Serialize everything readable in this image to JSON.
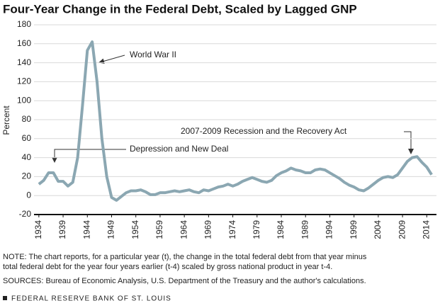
{
  "chart_data": {
    "type": "line",
    "title": "Four-Year Change in the Federal Debt, Scaled by Lagged GNP",
    "y_label": "Percent",
    "x": [
      1934,
      1935,
      1936,
      1937,
      1938,
      1939,
      1940,
      1941,
      1942,
      1943,
      1944,
      1945,
      1946,
      1947,
      1948,
      1949,
      1950,
      1951,
      1952,
      1953,
      1954,
      1955,
      1956,
      1957,
      1958,
      1959,
      1960,
      1961,
      1962,
      1963,
      1964,
      1965,
      1966,
      1967,
      1968,
      1969,
      1970,
      1971,
      1972,
      1973,
      1974,
      1975,
      1976,
      1977,
      1978,
      1979,
      1980,
      1981,
      1982,
      1983,
      1984,
      1985,
      1986,
      1987,
      1988,
      1989,
      1990,
      1991,
      1992,
      1993,
      1994,
      1995,
      1996,
      1997,
      1998,
      1999,
      2000,
      2001,
      2002,
      2003,
      2004,
      2005,
      2006,
      2007,
      2008,
      2009,
      2010,
      2011,
      2012,
      2013,
      2014,
      2015
    ],
    "series": [
      {
        "color": "#8ba7b2",
        "values": [
          12,
          16,
          24,
          24,
          15,
          15,
          10,
          14,
          40,
          95,
          153,
          162,
          120,
          60,
          20,
          -2,
          -5,
          -1,
          3,
          5,
          5,
          6,
          4,
          1,
          1,
          3,
          3,
          4,
          5,
          4,
          5,
          6,
          4,
          3,
          6,
          5,
          7,
          9,
          10,
          12,
          10,
          12,
          15,
          17,
          19,
          17,
          15,
          14,
          16,
          21,
          24,
          26,
          29,
          27,
          26,
          24,
          24,
          27,
          28,
          27,
          24,
          21,
          18,
          14,
          11,
          9,
          6,
          5,
          8,
          12,
          16,
          19,
          20,
          19,
          22,
          29,
          36,
          40,
          41,
          35,
          30,
          22
        ]
      }
    ],
    "xlim": [
      1933,
      2016
    ],
    "xticks": [
      1934,
      1939,
      1944,
      1949,
      1954,
      1959,
      1964,
      1969,
      1974,
      1979,
      1984,
      1989,
      1994,
      1999,
      2004,
      2009,
      2014
    ],
    "ylim": [
      -20,
      180
    ],
    "yticks": [
      -20,
      0,
      20,
      40,
      60,
      80,
      100,
      120,
      140,
      160,
      180
    ],
    "grid": true,
    "annotations": [
      "World War II",
      "Depression and New Deal",
      "2007-2009 Recession and the Recovery Act"
    ],
    "note": [
      "NOTE: The chart reports, for a particular year (t), the change in the total federal debt from that year minus",
      "total federal debt for the year four years earlier (t-4) scaled by gross national product in year t-4."
    ],
    "sources": "SOURCES: Bureau of Economic Analysis, U.S. Department of the Treasury and the author's calculations.",
    "footer": "FEDERAL RESERVE BANK OF ST. LOUIS"
  }
}
